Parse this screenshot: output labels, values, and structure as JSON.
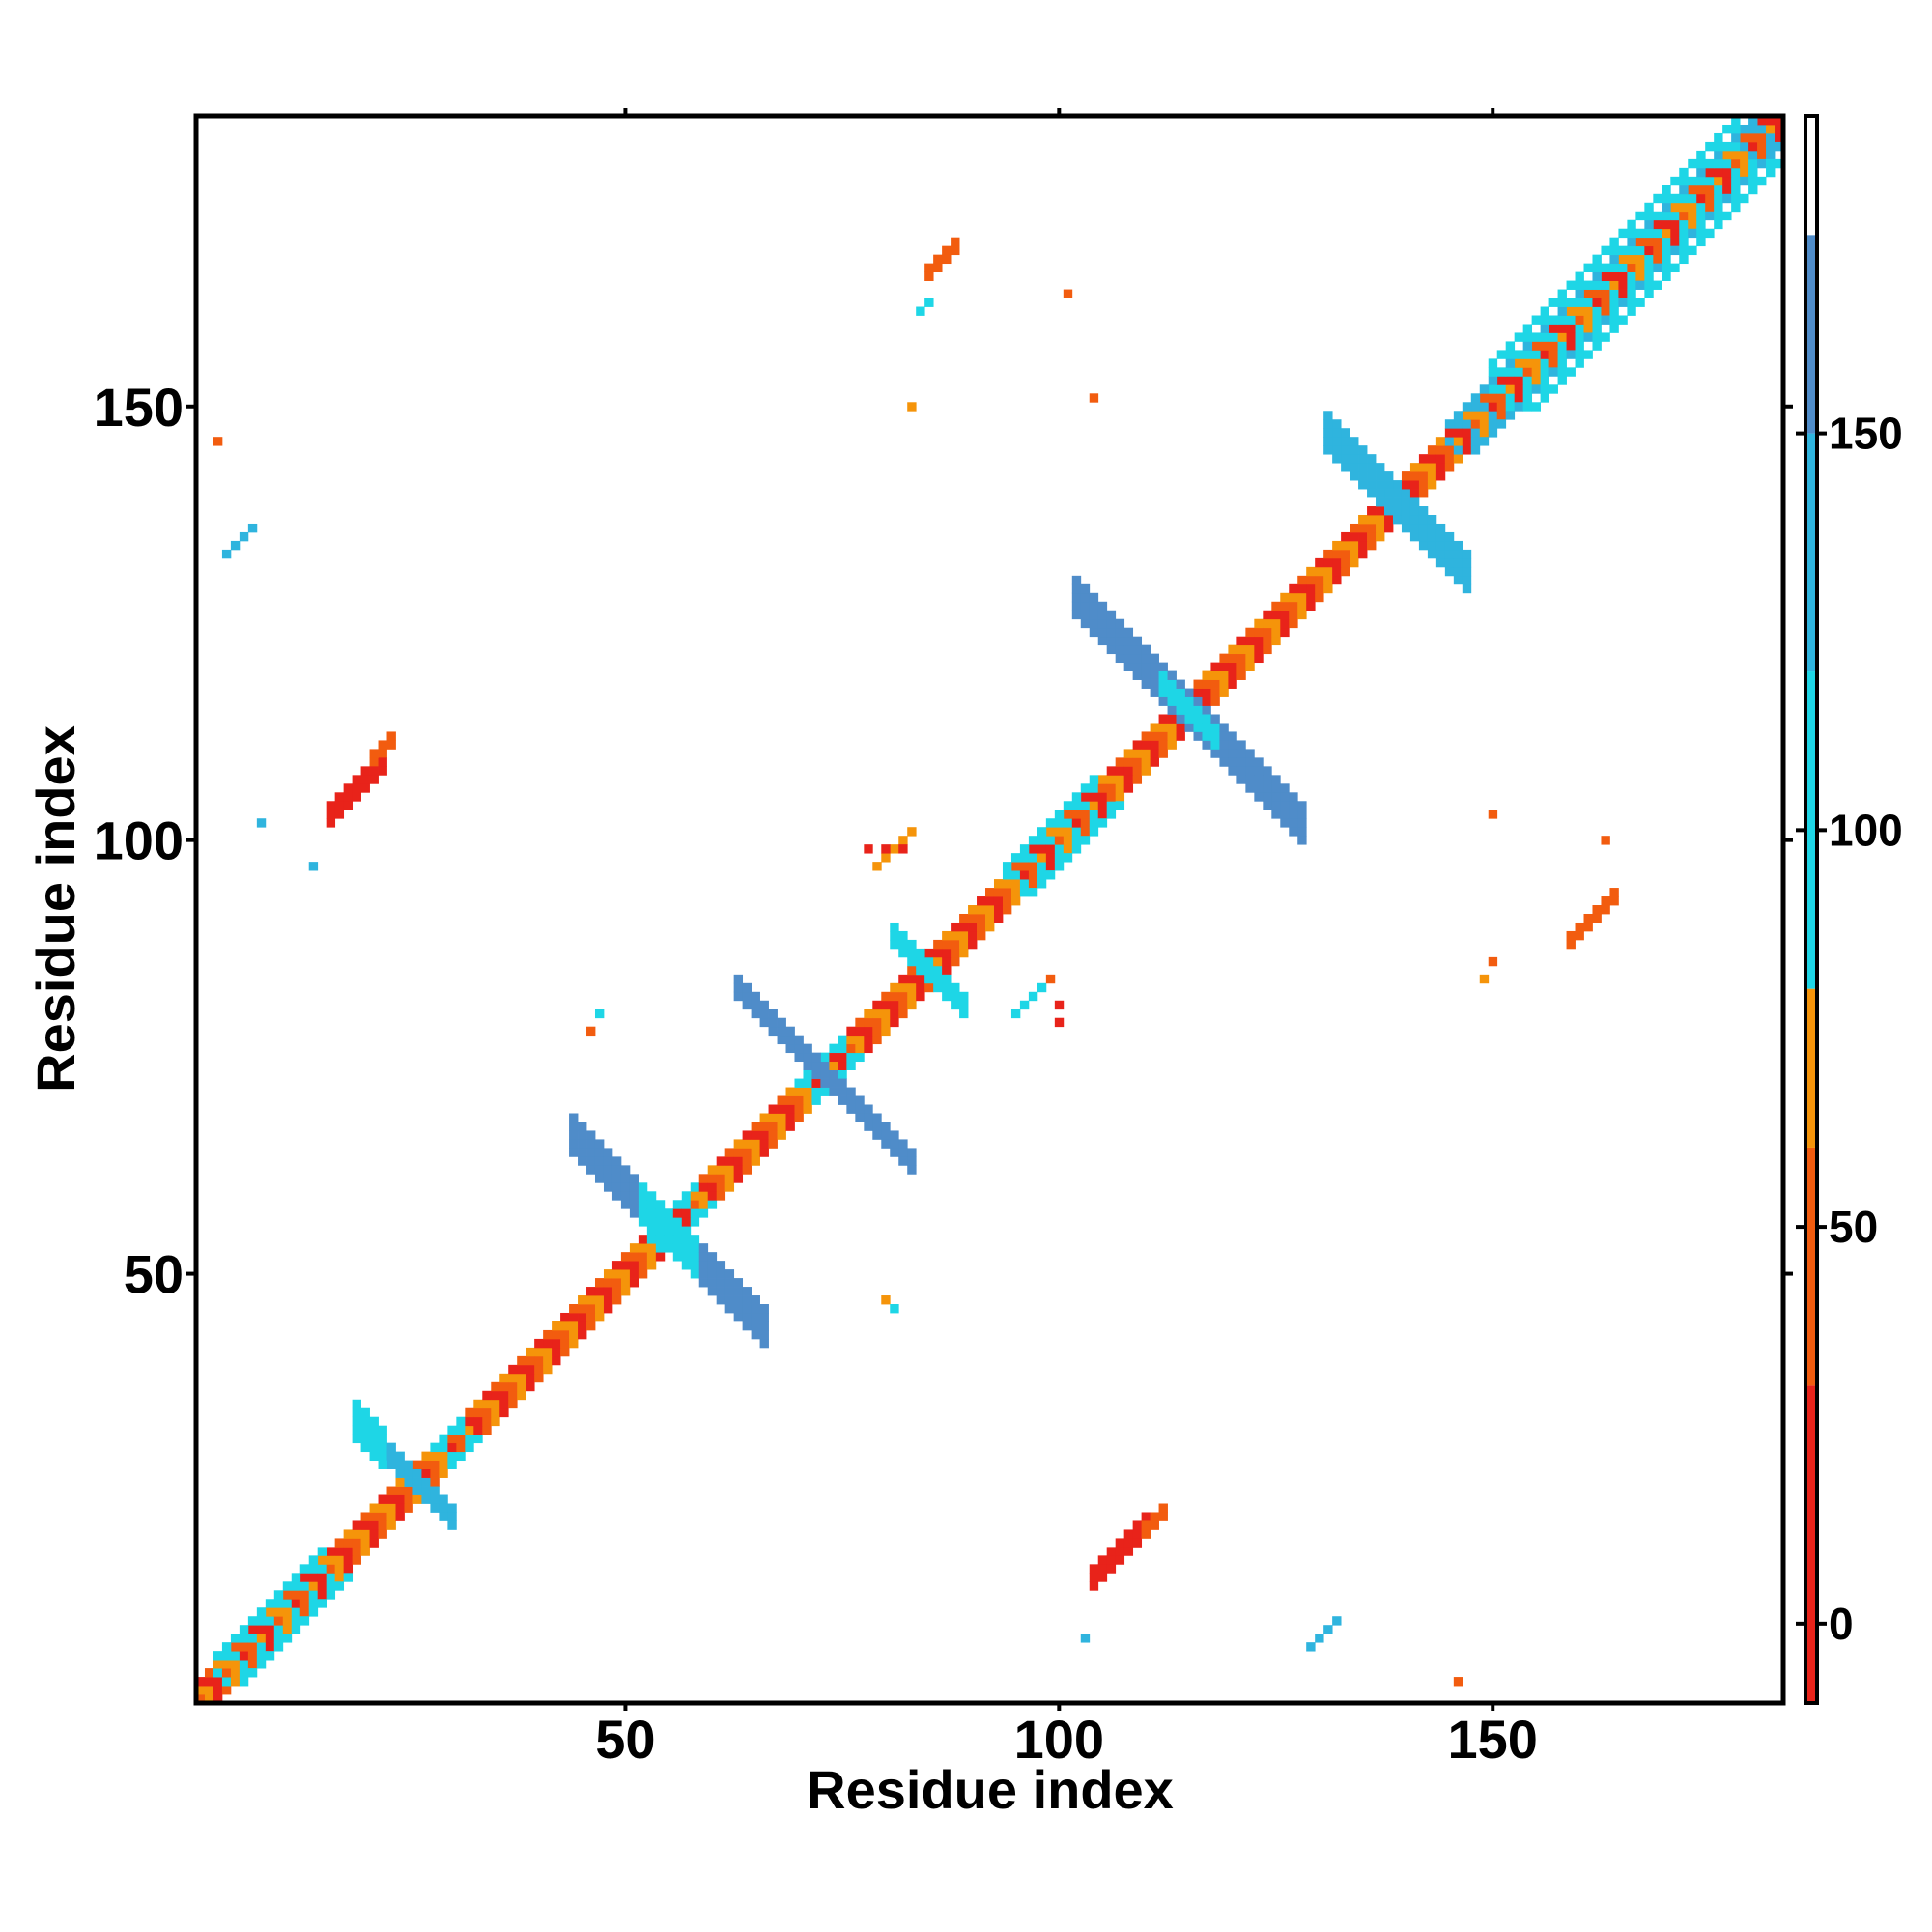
{
  "chart_data": {
    "type": "heatmap",
    "xlabel": "Residue index",
    "ylabel": "Residue index",
    "xlim": [
      0.5,
      183.5
    ],
    "ylim": [
      0.5,
      183.5
    ],
    "xticks": [
      50,
      100,
      150
    ],
    "yticks": [
      50,
      100,
      150
    ],
    "colorbar": {
      "range": [
        -10,
        190
      ],
      "ticks": [
        0,
        50,
        100,
        150
      ],
      "bands": [
        {
          "from": -10,
          "to": 30,
          "color": "#e8231a"
        },
        {
          "from": 30,
          "to": 60,
          "color": "#f25c0f"
        },
        {
          "from": 60,
          "to": 80,
          "color": "#f5940a"
        },
        {
          "from": 80,
          "to": 120,
          "color": "#1ed6e6"
        },
        {
          "from": 120,
          "to": 150,
          "color": "#2fb4de"
        },
        {
          "from": 150,
          "to": 175,
          "color": "#4f8cc9"
        },
        {
          "from": 175,
          "to": 190,
          "color": "#ffffff"
        }
      ]
    },
    "diagonal": {
      "value_pattern": [
        10,
        45,
        70
      ]
    },
    "regions": [
      {
        "name": "helix-1",
        "kind": "band",
        "x": [
          3,
          15
        ],
        "offset": 3,
        "value": 100
      },
      {
        "name": "helix-2",
        "kind": "band",
        "x": [
          28,
          31
        ],
        "offset": 2,
        "value": 100
      },
      {
        "name": "helix-3",
        "kind": "band",
        "x": [
          53,
          58
        ],
        "offset": 2,
        "value": 100
      },
      {
        "name": "helix-4",
        "kind": "band",
        "x": [
          70,
          75
        ],
        "offset": 2,
        "value": 100
      },
      {
        "name": "helix-5",
        "kind": "band",
        "x": [
          94,
          104
        ],
        "offset": 3,
        "value": 100
      },
      {
        "name": "helix-6",
        "kind": "band",
        "x": [
          145,
          182
        ],
        "offset": 3,
        "value": 120
      },
      {
        "name": "helix-6b",
        "kind": "band",
        "x": [
          150,
          178
        ],
        "offset": 5,
        "value": 100
      },
      {
        "name": "cross-a1",
        "kind": "anti",
        "center": [
          26,
          26
        ],
        "arm": [
          -4,
          4
        ],
        "width": 1,
        "value": 130
      },
      {
        "name": "cross-a2",
        "kind": "anti",
        "center": [
          26,
          26
        ],
        "arm": [
          -7,
          -4
        ],
        "width": 2,
        "value": 100
      },
      {
        "name": "cross-b",
        "kind": "anti",
        "center": [
          55,
          55
        ],
        "arm": [
          -11,
          11
        ],
        "width": 2,
        "value": 155
      },
      {
        "name": "cross-b-core",
        "kind": "anti",
        "center": [
          55,
          55
        ],
        "arm": [
          -3,
          3
        ],
        "width": 2,
        "value": 100
      },
      {
        "name": "cross-c",
        "kind": "anti",
        "center": [
          85,
          85
        ],
        "arm": [
          -4,
          4
        ],
        "width": 1,
        "value": 110
      },
      {
        "name": "cross-d",
        "kind": "anti",
        "center": [
          115,
          115
        ],
        "arm": [
          -13,
          13
        ],
        "width": 2,
        "value": 160
      },
      {
        "name": "cross-d-core",
        "kind": "anti",
        "center": [
          115,
          115
        ],
        "arm": [
          -3,
          3
        ],
        "width": 1,
        "value": 100
      },
      {
        "name": "cross-e",
        "kind": "anti",
        "center": [
          139,
          139
        ],
        "arm": [
          -8,
          8
        ],
        "width": 2,
        "value": 130
      },
      {
        "name": "strand-pair-1",
        "kind": "anti",
        "center": [
          70,
          76
        ],
        "arm": [
          -7,
          7
        ],
        "width": 1,
        "value": 150
      },
      {
        "name": "strand-pair-1T",
        "kind": "anti",
        "center": [
          76,
          70
        ],
        "arm": [
          -7,
          7
        ],
        "width": 1,
        "value": 150
      },
      {
        "name": "par-red-1",
        "kind": "par",
        "x0": 16,
        "y0": 104,
        "len": 7,
        "width": 3,
        "value": 10
      },
      {
        "name": "par-orange-1",
        "kind": "par",
        "x0": 21,
        "y0": 110,
        "len": 3,
        "width": 2,
        "value": 45
      },
      {
        "name": "par-red-1T",
        "kind": "par",
        "x0": 104,
        "y0": 16,
        "len": 7,
        "width": 3,
        "value": 10
      },
      {
        "name": "par-orange-1T",
        "kind": "par",
        "x0": 110,
        "y0": 21,
        "len": 3,
        "width": 2,
        "value": 45
      },
      {
        "name": "par-blue-2",
        "kind": "par",
        "x0": 4,
        "y0": 133,
        "len": 4,
        "width": 1,
        "value": 130
      },
      {
        "name": "par-blue-2T",
        "kind": "par",
        "x0": 129,
        "y0": 7,
        "len": 4,
        "width": 1,
        "value": 130
      },
      {
        "name": "patch-3",
        "kind": "par",
        "x0": 85,
        "y0": 166,
        "len": 4,
        "width": 2,
        "value": 45
      },
      {
        "name": "patch-3b",
        "kind": "par",
        "x0": 84,
        "y0": 161,
        "len": 2,
        "width": 1,
        "value": 100
      },
      {
        "name": "patch-3T",
        "kind": "par",
        "x0": 159,
        "y0": 89,
        "len": 6,
        "width": 2,
        "value": 45
      },
      {
        "name": "patch-4",
        "kind": "par",
        "x0": 79,
        "y0": 97,
        "len": 5,
        "width": 1,
        "value": 70
      },
      {
        "name": "patch-4T",
        "kind": "par",
        "x0": 95,
        "y0": 80,
        "len": 4,
        "width": 1,
        "value": 100
      }
    ],
    "points": [
      {
        "x": 3,
        "y": 146,
        "value": 45
      },
      {
        "x": 101,
        "y": 163,
        "value": 45
      },
      {
        "x": 104,
        "y": 151,
        "value": 45
      },
      {
        "x": 83,
        "y": 150,
        "value": 70
      },
      {
        "x": 150,
        "y": 103,
        "value": 45
      },
      {
        "x": 163,
        "y": 100,
        "value": 45
      },
      {
        "x": 8,
        "y": 102,
        "value": 120
      },
      {
        "x": 14,
        "y": 97,
        "value": 120
      },
      {
        "x": 103,
        "y": 8,
        "value": 120
      },
      {
        "x": 146,
        "y": 3,
        "value": 45
      },
      {
        "x": 46,
        "y": 78,
        "value": 45
      },
      {
        "x": 47,
        "y": 80,
        "value": 100
      },
      {
        "x": 80,
        "y": 47,
        "value": 70
      },
      {
        "x": 81,
        "y": 46,
        "value": 100
      },
      {
        "x": 149,
        "y": 84,
        "value": 70
      },
      {
        "x": 150,
        "y": 86,
        "value": 45
      },
      {
        "x": 100,
        "y": 79,
        "value": 10
      },
      {
        "x": 100,
        "y": 81,
        "value": 10
      },
      {
        "x": 99,
        "y": 84,
        "value": 45
      },
      {
        "x": 78,
        "y": 99,
        "value": 10
      },
      {
        "x": 80,
        "y": 99,
        "value": 10
      },
      {
        "x": 82,
        "y": 99,
        "value": 10
      }
    ]
  }
}
